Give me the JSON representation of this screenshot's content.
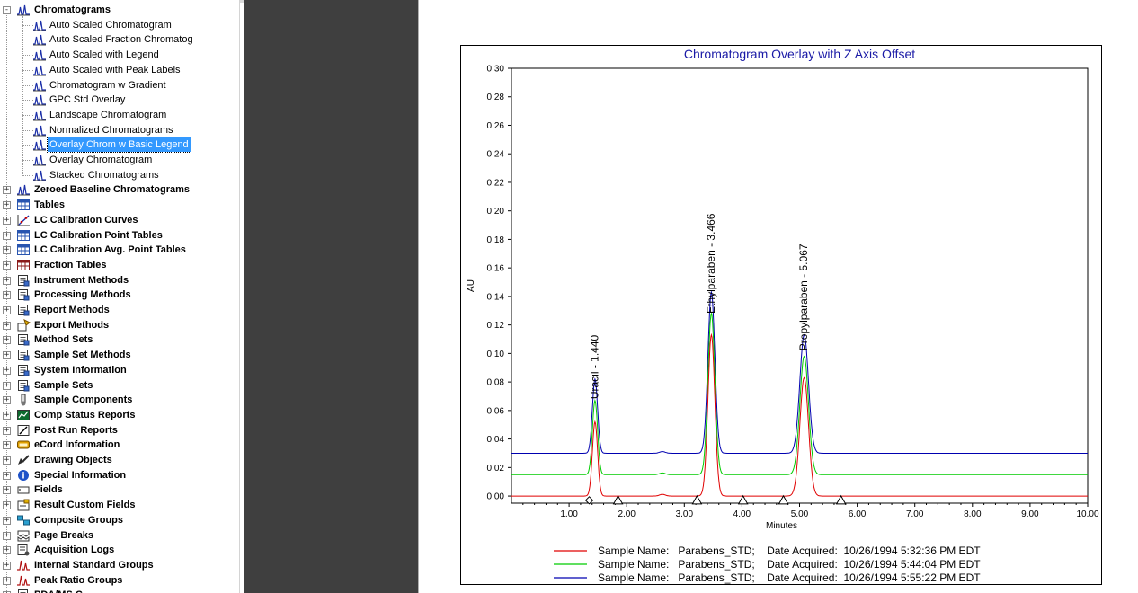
{
  "tree": {
    "groups": [
      {
        "label": "Chromatograms",
        "icon": "chromatogram-icon",
        "expanded": true,
        "children": [
          "Auto Scaled Chromatogram",
          "Auto Scaled Fraction Chromatog",
          "Auto Scaled with Legend",
          "Auto Scaled with Peak Labels",
          "Chromatogram w Gradient",
          "GPC Std Overlay",
          "Landscape Chromatogram",
          "Normalized Chromatograms",
          "Overlay Chrom w Basic Legend",
          "Overlay Chromatogram",
          "Stacked Chromatograms"
        ],
        "selected_child": 8
      },
      {
        "label": "Zeroed Baseline Chromatograms",
        "icon": "zeroed-baseline-icon"
      },
      {
        "label": "Tables",
        "icon": "table-icon"
      },
      {
        "label": "LC Calibration Curves",
        "icon": "calibration-curve-icon"
      },
      {
        "label": "LC Calibration Point Tables",
        "icon": "calibration-point-table-icon"
      },
      {
        "label": "LC Calibration Avg. Point Tables",
        "icon": "calibration-avg-table-icon"
      },
      {
        "label": "Fraction Tables",
        "icon": "fraction-table-icon"
      },
      {
        "label": "Instrument Methods",
        "icon": "instrument-method-icon"
      },
      {
        "label": "Processing Methods",
        "icon": "processing-method-icon"
      },
      {
        "label": "Report Methods",
        "icon": "report-method-icon"
      },
      {
        "label": "Export Methods",
        "icon": "export-method-icon"
      },
      {
        "label": "Method Sets",
        "icon": "method-set-icon"
      },
      {
        "label": "Sample Set Methods",
        "icon": "sample-set-method-icon"
      },
      {
        "label": "System Information",
        "icon": "system-info-icon"
      },
      {
        "label": "Sample Sets",
        "icon": "sample-set-icon"
      },
      {
        "label": "Sample Components",
        "icon": "sample-component-icon"
      },
      {
        "label": "Comp Status Reports",
        "icon": "comp-status-icon"
      },
      {
        "label": "Post Run Reports",
        "icon": "post-run-report-icon"
      },
      {
        "label": "eCord Information",
        "icon": "ecord-icon"
      },
      {
        "label": "Drawing Objects",
        "icon": "drawing-object-icon"
      },
      {
        "label": "Special Information",
        "icon": "info-icon"
      },
      {
        "label": "Fields",
        "icon": "field-icon"
      },
      {
        "label": "Result Custom Fields",
        "icon": "custom-field-icon"
      },
      {
        "label": "Composite Groups",
        "icon": "composite-group-icon"
      },
      {
        "label": "Page Breaks",
        "icon": "page-break-icon"
      },
      {
        "label": "Acquisition Logs",
        "icon": "acquisition-log-icon"
      },
      {
        "label": "Internal Standard Groups",
        "icon": "internal-standard-icon"
      },
      {
        "label": "Peak Ratio Groups",
        "icon": "peak-ratio-icon"
      },
      {
        "label": "PDA/MS C...",
        "icon": "pda-ms-icon"
      }
    ]
  },
  "colors": {
    "selection": "#3399ff",
    "grey_panel": "#3f3f3f",
    "title": "#1a1aa6",
    "trace1": "#e00000",
    "trace2": "#00cc00",
    "trace3": "#0000b0"
  },
  "chart_data": {
    "type": "line",
    "title": "Chromatogram Overlay with Z Axis Offset",
    "xlabel": "Minutes",
    "ylabel": "AU",
    "xlim": [
      0.0,
      10.0
    ],
    "ylim": [
      -0.005,
      0.3
    ],
    "x_ticks": [
      "1.00",
      "2.00",
      "3.00",
      "4.00",
      "5.00",
      "6.00",
      "7.00",
      "8.00",
      "9.00",
      "10.00"
    ],
    "y_ticks": [
      "0.00",
      "0.02",
      "0.04",
      "0.06",
      "0.08",
      "0.10",
      "0.12",
      "0.14",
      "0.16",
      "0.18",
      "0.20",
      "0.22",
      "0.24",
      "0.26",
      "0.28",
      "0.30"
    ],
    "z_offset_au": 0.015,
    "peaks": [
      {
        "rt": 1.45,
        "height": 0.052,
        "sigma": 0.045
      },
      {
        "rt": 3.47,
        "height": 0.113,
        "sigma": 0.06
      },
      {
        "rt": 5.08,
        "height": 0.083,
        "sigma": 0.075
      },
      {
        "rt": 2.62,
        "height": 0.0012,
        "sigma": 0.05
      }
    ],
    "peak_labels": [
      {
        "text": "Uracil - 1.440",
        "x": 1.44,
        "y": 0.068
      },
      {
        "text": "Ethylparaben - 3.466",
        "x": 3.466,
        "y": 0.128
      },
      {
        "text": "Propylparaben - 5.067",
        "x": 5.067,
        "y": 0.102
      }
    ],
    "markers": [
      {
        "x": 1.35,
        "y": -0.003,
        "shape": "diamond"
      },
      {
        "x": 1.85,
        "y": -0.003,
        "shape": "triangle"
      },
      {
        "x": 3.22,
        "y": -0.003,
        "shape": "triangle"
      },
      {
        "x": 4.02,
        "y": -0.003,
        "shape": "triangle"
      },
      {
        "x": 4.72,
        "y": -0.003,
        "shape": "triangle"
      },
      {
        "x": 5.72,
        "y": -0.003,
        "shape": "triangle"
      }
    ],
    "series": [
      {
        "name": "Sample Name:   Parabens_STD;    Date Acquired:  10/26/1994 5:32:36 PM EDT",
        "color": "#e00000",
        "index": 0
      },
      {
        "name": "Sample Name:   Parabens_STD;    Date Acquired:  10/26/1994 5:44:04 PM EDT",
        "color": "#00cc00",
        "index": 1
      },
      {
        "name": "Sample Name:   Parabens_STD;    Date Acquired:  10/26/1994 5:55:22 PM EDT",
        "color": "#0000b0",
        "index": 2
      }
    ],
    "legend_position": "bottom",
    "grid": false
  }
}
